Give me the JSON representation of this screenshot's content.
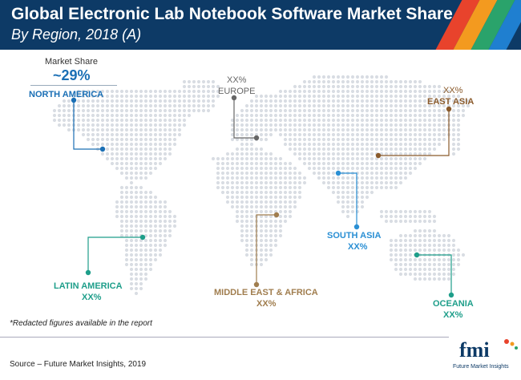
{
  "header": {
    "title": "Global Electronic Lab Notebook Software Market Share",
    "subtitle": "By Region, 2018 (A)",
    "stripe_colors": [
      "#e8432c",
      "#f39a1f",
      "#2aa36b",
      "#1f7fd0"
    ]
  },
  "market_share": {
    "label": "Market Share",
    "value": "~29%"
  },
  "regions": {
    "north_america": {
      "name": "NORTH AMERICA",
      "color": "#1a6fb5"
    },
    "europe": {
      "value": "XX%",
      "name": "EUROPE",
      "color": "#666666"
    },
    "east_asia": {
      "value": "XX%",
      "name": "EAST ASIA",
      "color": "#8a5a2b"
    },
    "south_asia": {
      "name": "SOUTH ASIA",
      "value": "XX%",
      "color": "#2a8fd4"
    },
    "latin_america": {
      "name": "LATIN AMERICA",
      "value": "XX%",
      "color": "#1e9e8a"
    },
    "mea": {
      "name": "MIDDLE EAST & AFRICA",
      "value": "XX%",
      "color": "#a07d4e"
    },
    "oceania": {
      "name": "OCEANIA",
      "value": "XX%",
      "color": "#1e9e8a"
    }
  },
  "map_colors": {
    "dot": "#d9dde3"
  },
  "footer": {
    "note": "*Redacted figures available in the report",
    "source": "Source – Future Market Insights, 2019"
  },
  "logo": {
    "text": "fmi",
    "subtitle": "Future Market Insights"
  }
}
